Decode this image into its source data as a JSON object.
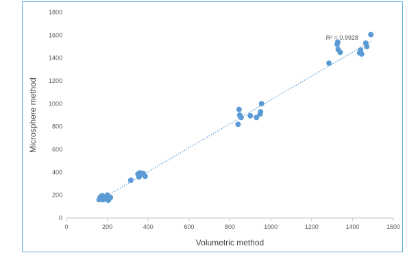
{
  "chart_data": {
    "type": "scatter",
    "title": "",
    "xlabel": "Volumetric method",
    "ylabel": "Microsphere method",
    "xlim": [
      0,
      1600
    ],
    "ylim": [
      0,
      1800
    ],
    "x_ticks": [
      0,
      200,
      400,
      600,
      800,
      1000,
      1200,
      1400,
      1600
    ],
    "y_ticks": [
      0,
      200,
      400,
      600,
      800,
      1000,
      1200,
      1400,
      1600,
      1800
    ],
    "grid": false,
    "legend": "none",
    "point_color": "#5b9bd5",
    "trendline": {
      "type": "linear",
      "style": "dotted",
      "color": "#5b9bd5",
      "x_range": [
        160,
        1490
      ],
      "y_range": [
        155,
        1545
      ]
    },
    "annotation": "R² = 0.9928",
    "points": [
      {
        "x": 160,
        "y": 160
      },
      {
        "x": 165,
        "y": 180
      },
      {
        "x": 170,
        "y": 165
      },
      {
        "x": 175,
        "y": 195
      },
      {
        "x": 180,
        "y": 160
      },
      {
        "x": 185,
        "y": 175
      },
      {
        "x": 190,
        "y": 185
      },
      {
        "x": 195,
        "y": 165
      },
      {
        "x": 200,
        "y": 200
      },
      {
        "x": 205,
        "y": 155
      },
      {
        "x": 210,
        "y": 170
      },
      {
        "x": 215,
        "y": 180
      },
      {
        "x": 195,
        "y": 185
      },
      {
        "x": 170,
        "y": 190
      },
      {
        "x": 315,
        "y": 330
      },
      {
        "x": 350,
        "y": 385
      },
      {
        "x": 355,
        "y": 360
      },
      {
        "x": 360,
        "y": 395
      },
      {
        "x": 370,
        "y": 385
      },
      {
        "x": 375,
        "y": 390
      },
      {
        "x": 385,
        "y": 365
      },
      {
        "x": 840,
        "y": 820
      },
      {
        "x": 845,
        "y": 950
      },
      {
        "x": 848,
        "y": 900
      },
      {
        "x": 855,
        "y": 880
      },
      {
        "x": 900,
        "y": 895
      },
      {
        "x": 930,
        "y": 880
      },
      {
        "x": 948,
        "y": 910
      },
      {
        "x": 950,
        "y": 930
      },
      {
        "x": 955,
        "y": 1000
      },
      {
        "x": 1285,
        "y": 1355
      },
      {
        "x": 1325,
        "y": 1520
      },
      {
        "x": 1328,
        "y": 1540
      },
      {
        "x": 1330,
        "y": 1475
      },
      {
        "x": 1340,
        "y": 1450
      },
      {
        "x": 1435,
        "y": 1445
      },
      {
        "x": 1440,
        "y": 1470
      },
      {
        "x": 1445,
        "y": 1435
      },
      {
        "x": 1465,
        "y": 1530
      },
      {
        "x": 1470,
        "y": 1500
      },
      {
        "x": 1490,
        "y": 1605
      }
    ]
  }
}
